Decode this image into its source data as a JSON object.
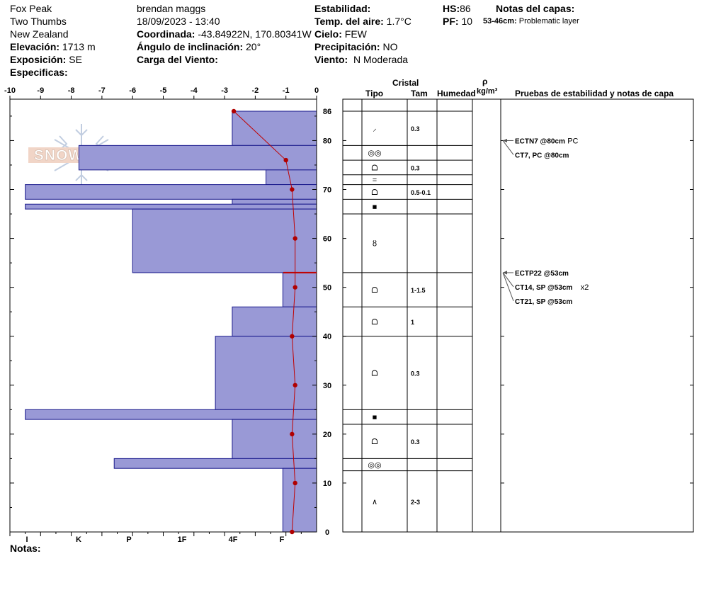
{
  "header": {
    "site": "Fox Peak",
    "range": "Two Thumbs",
    "country": "New Zealand",
    "elevation_label": "Elevación:",
    "elevation_value": "1713 m",
    "aspect_label": "Exposición:",
    "aspect_value": "SE",
    "specifics_label": "Especificas:",
    "observer": "brendan maggs",
    "datetime": "18/09/2023 - 13:40",
    "coord_label": "Coordinada:",
    "coord_value": "-43.84922N, 170.80341W",
    "slope_label": "Ángulo de inclinación:",
    "slope_value": "20°",
    "wind_load_label": "Carga del Viento:",
    "stability_label": "Estabilidad:",
    "air_temp_label": "Temp. del aire:",
    "air_temp_value": "1.7°C",
    "sky_label": "Cielo:",
    "sky_value": "FEW",
    "precip_label": "Precipitación:",
    "precip_value": "NO",
    "wind_label": "Viento:",
    "wind_value": "N Moderada",
    "hs_label": "HS:",
    "hs_value": "86",
    "pf_label": "PF:",
    "pf_value": "10",
    "layer_notes_label": "Notas del capas:",
    "layer_note_range": "53-46cm:",
    "layer_note_text": "Problematic layer"
  },
  "notes_label": "Notas:",
  "logo_text": "SNOWPILOT",
  "columns": {
    "crystal": "Cristal",
    "type": "Tipo",
    "size": "Tam",
    "moisture": "Humedad",
    "rho": "ρ",
    "density_unit": "kg/m³",
    "tests": "Pruebas de estabilidad y notas de capa"
  },
  "colors": {
    "hardness_fill": "#9999d6",
    "temp_line": "#c00000",
    "layer_line": "#c00000"
  },
  "chart_data": {
    "type": "snow-profile",
    "temperature_axis": {
      "min": -10,
      "max": 0,
      "ticks": [
        -10,
        -9,
        -8,
        -7,
        -6,
        -5,
        -4,
        -3,
        -2,
        -1,
        0
      ]
    },
    "height_axis": {
      "min": 0,
      "max": 86,
      "ticks": [
        0,
        10,
        20,
        30,
        40,
        50,
        60,
        70,
        80,
        86
      ]
    },
    "hardness_labels": [
      "I",
      "K",
      "P",
      "1F",
      "4F",
      "F"
    ],
    "hardness_layers": [
      {
        "top": 86,
        "bottom": 79,
        "temp_extent": -2.75
      },
      {
        "top": 79,
        "bottom": 74,
        "temp_extent": -7.75
      },
      {
        "top": 74,
        "bottom": 71,
        "temp_extent": -1.65
      },
      {
        "top": 71,
        "bottom": 68,
        "temp_extent": -9.5
      },
      {
        "top": 68,
        "bottom": 67,
        "temp_extent": -2.75
      },
      {
        "top": 67,
        "bottom": 66,
        "temp_extent": -9.5
      },
      {
        "top": 66,
        "bottom": 53,
        "temp_extent": -6.0
      },
      {
        "top": 53,
        "bottom": 46,
        "temp_extent": -1.1
      },
      {
        "top": 46,
        "bottom": 40,
        "temp_extent": -2.75
      },
      {
        "top": 40,
        "bottom": 25,
        "temp_extent": -3.3
      },
      {
        "top": 25,
        "bottom": 23,
        "temp_extent": -9.5
      },
      {
        "top": 23,
        "bottom": 15,
        "temp_extent": -2.75
      },
      {
        "top": 15,
        "bottom": 13,
        "temp_extent": -6.6
      },
      {
        "top": 13,
        "bottom": 0,
        "temp_extent": -1.1
      }
    ],
    "temperature_profile": [
      {
        "height": 86,
        "temp": -2.7
      },
      {
        "height": 76,
        "temp": -1.0
      },
      {
        "height": 70,
        "temp": -0.8
      },
      {
        "height": 60,
        "temp": -0.7
      },
      {
        "height": 50,
        "temp": -0.7
      },
      {
        "height": 40,
        "temp": -0.8
      },
      {
        "height": 30,
        "temp": -0.7
      },
      {
        "height": 20,
        "temp": -0.8
      },
      {
        "height": 10,
        "temp": -0.7
      },
      {
        "height": 0,
        "temp": -0.8
      }
    ],
    "layer_marker_height": 53,
    "crystal_layers": [
      {
        "top": 86,
        "bottom": 79,
        "type": "⸝",
        "size": "0.3"
      },
      {
        "top": 79,
        "bottom": 76,
        "type": "◎◎",
        "size": ""
      },
      {
        "top": 76,
        "bottom": 73,
        "type": "ᗝ",
        "size": "0.3"
      },
      {
        "top": 73,
        "bottom": 71,
        "type": "=",
        "size": ""
      },
      {
        "top": 71,
        "bottom": 68,
        "type": "ᗝ",
        "size": "0.5-0.1"
      },
      {
        "top": 68,
        "bottom": 65,
        "type": "■",
        "size": ""
      },
      {
        "top": 65,
        "bottom": 53,
        "type": "ȣ",
        "size": ""
      },
      {
        "top": 53,
        "bottom": 46,
        "type": "ᗝ",
        "size": "1-1.5"
      },
      {
        "top": 46,
        "bottom": 40,
        "type": "ᗝ",
        "size": "1"
      },
      {
        "top": 40,
        "bottom": 25,
        "type": "ᗝ",
        "size": "0.3"
      },
      {
        "top": 25,
        "bottom": 22,
        "type": "■",
        "size": ""
      },
      {
        "top": 22,
        "bottom": 15,
        "type": "ᗝ",
        "size": "0.3"
      },
      {
        "top": 15,
        "bottom": 12.5,
        "type": "◎◎",
        "size": ""
      },
      {
        "top": 12.5,
        "bottom": 0,
        "type": "∧",
        "size": "2-3"
      }
    ],
    "stability_tests": [
      {
        "height": 80,
        "offset": 0,
        "label": "ECTN7 @80cm",
        "note": "PC"
      },
      {
        "height": 80,
        "offset": 20,
        "label": "CT7, PC @80cm",
        "note": ""
      },
      {
        "height": 53,
        "offset": 0,
        "label": "ECTP22 @53cm",
        "note": ""
      },
      {
        "height": 53,
        "offset": 20,
        "label": "CT14, SP @53cm",
        "note": "x2"
      },
      {
        "height": 53,
        "offset": 40,
        "label": "CT21, SP @53cm",
        "note": ""
      }
    ]
  }
}
